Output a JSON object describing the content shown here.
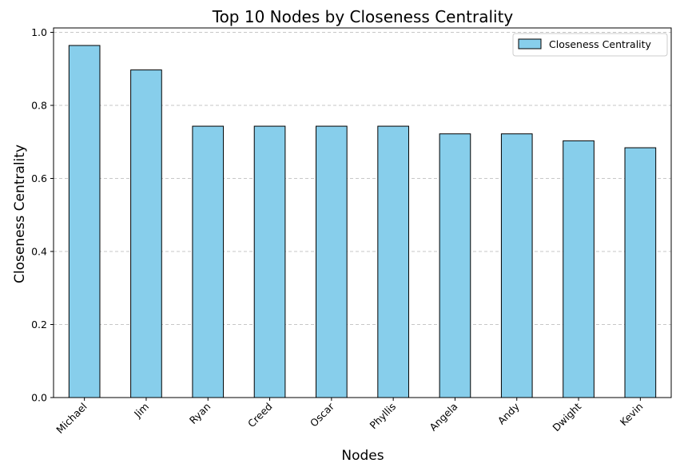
{
  "chart_data": {
    "type": "bar",
    "title": "Top 10 Nodes by Closeness Centrality",
    "xlabel": "Nodes",
    "ylabel": "Closeness Centrality",
    "categories": [
      "Michael",
      "Jim",
      "Ryan",
      "Creed",
      "Oscar",
      "Phyllis",
      "Angela",
      "Andy",
      "Dwight",
      "Kevin"
    ],
    "series": [
      {
        "name": "Closeness Centrality",
        "values": [
          0.964,
          0.897,
          0.743,
          0.743,
          0.743,
          0.743,
          0.722,
          0.722,
          0.703,
          0.684
        ],
        "color": "#87ceeb"
      }
    ],
    "ylim": [
      0,
      1.012
    ],
    "yticks": [
      "0.0",
      "0.2",
      "0.4",
      "0.6",
      "0.8",
      "1.0"
    ],
    "grid": "y-dashed",
    "legend": "top-right"
  }
}
